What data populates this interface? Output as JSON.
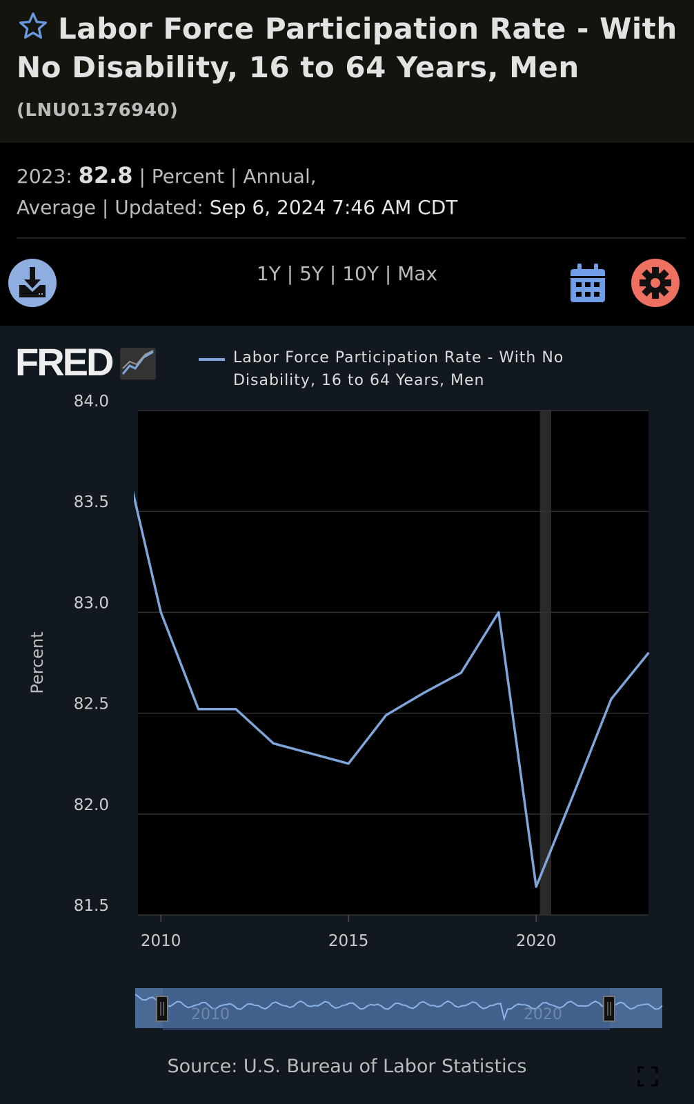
{
  "header": {
    "title": "Labor Force Participation Rate - With No Disability, 16 to 64 Years, Men",
    "series_id": "(LNU01376940)"
  },
  "meta": {
    "period": "2023:",
    "value": "82.8",
    "units": "| Percent | Annual,",
    "freq2": "Average | Updated:",
    "updated": "Sep 6, 2024 7:46 AM CDT"
  },
  "toolbar": {
    "ranges": [
      "1Y",
      "5Y",
      "10Y",
      "Max"
    ],
    "sep": "|"
  },
  "legend": {
    "logo": "FRED",
    "label": "Labor Force Participation Rate - With No Disability, 16 to 64 Years, Men"
  },
  "colors": {
    "line": "#7fa6da",
    "download": "#8eaee0",
    "gear": "#ee7060"
  },
  "chart_data": {
    "type": "line",
    "title": "Labor Force Participation Rate - With No Disability, 16 to 64 Years, Men",
    "ylabel": "Percent",
    "xlabel": "",
    "ylim": [
      81.5,
      84.0
    ],
    "xlim": [
      2009.3,
      2023
    ],
    "yticks": [
      "84.0",
      "83.5",
      "83.0",
      "82.5",
      "82.0",
      "81.5"
    ],
    "xticks": [
      "2010",
      "2015",
      "2020"
    ],
    "x": [
      2009,
      2010,
      2011,
      2012,
      2013,
      2014,
      2015,
      2016,
      2017,
      2018,
      2019,
      2020,
      2021,
      2022,
      2023
    ],
    "series": [
      {
        "name": "Labor Force Participation Rate - With No Disability, 16 to 64 Years, Men",
        "values": [
          83.8,
          83.0,
          82.52,
          82.52,
          82.35,
          82.3,
          82.25,
          82.49,
          82.6,
          82.7,
          83.0,
          81.64,
          82.1,
          82.57,
          82.8
        ]
      }
    ],
    "recession": [
      2020.1,
      2020.4
    ],
    "navigator_labels": [
      "2010",
      "2020"
    ],
    "source": "Source: U.S. Bureau of Labor Statistics"
  }
}
